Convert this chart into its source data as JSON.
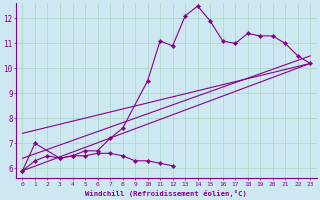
{
  "xlabel": "Windchill (Refroidissement éolien,°C)",
  "background_color": "#cde8f0",
  "grid_color": "#b0d8cc",
  "line_color": "#880088",
  "xlim": [
    -0.5,
    23.5
  ],
  "ylim": [
    5.6,
    12.6
  ],
  "xticks": [
    0,
    1,
    2,
    3,
    4,
    5,
    6,
    7,
    8,
    9,
    10,
    11,
    12,
    13,
    14,
    15,
    16,
    17,
    18,
    19,
    20,
    21,
    22,
    23
  ],
  "yticks": [
    6,
    7,
    8,
    9,
    10,
    11,
    12
  ],
  "series_zigzag": {
    "x": [
      0,
      1,
      3,
      4,
      5,
      6,
      7,
      8,
      10,
      11,
      12,
      13,
      14,
      15,
      16,
      17,
      18,
      19,
      20,
      21,
      22,
      23
    ],
    "y": [
      5.9,
      7.0,
      6.4,
      6.5,
      6.7,
      6.7,
      7.2,
      7.6,
      9.5,
      11.1,
      10.9,
      12.1,
      12.5,
      11.9,
      11.1,
      11.0,
      11.4,
      11.3,
      11.3,
      11.0,
      10.5,
      10.2
    ]
  },
  "series_flat": {
    "x": [
      0,
      1,
      2,
      3,
      4,
      5,
      6,
      7,
      8,
      9,
      10,
      11,
      12
    ],
    "y": [
      5.9,
      6.3,
      6.5,
      6.4,
      6.5,
      6.5,
      6.6,
      6.6,
      6.5,
      6.3,
      6.3,
      6.2,
      6.1
    ]
  },
  "line1": [
    [
      0,
      23
    ],
    [
      5.9,
      10.2
    ]
  ],
  "line2": [
    [
      0,
      23
    ],
    [
      6.4,
      10.5
    ]
  ],
  "line3": [
    [
      0,
      23
    ],
    [
      7.4,
      10.2
    ]
  ]
}
